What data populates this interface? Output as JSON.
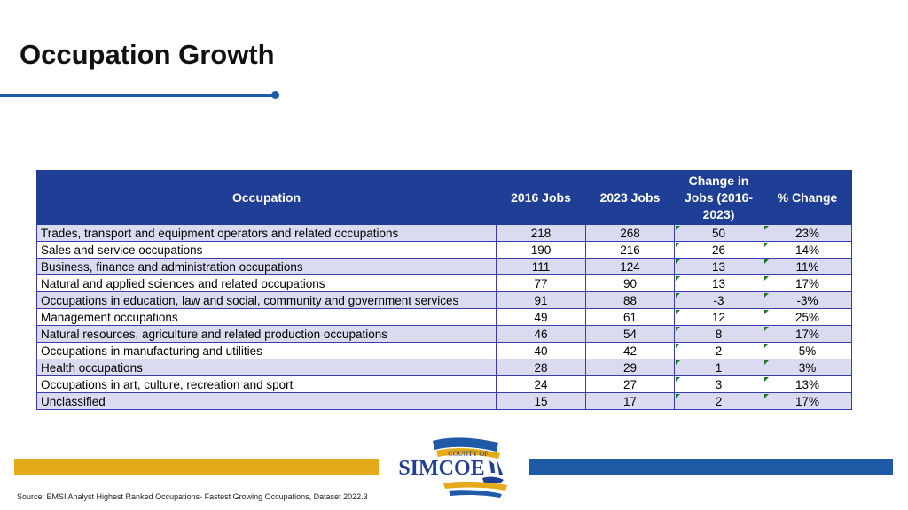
{
  "page": {
    "title": "Occupation Growth"
  },
  "table": {
    "headers": [
      "Occupation",
      "2016 Jobs",
      "2023 Jobs",
      "Change in Jobs (2016-2023)",
      "% Change"
    ],
    "rows": [
      [
        "Trades, transport and equipment operators and related occupations",
        "218",
        "268",
        "50",
        "23%"
      ],
      [
        "Sales and service occupations",
        "190",
        "216",
        "26",
        "14%"
      ],
      [
        "Business, finance and administration occupations",
        "111",
        "124",
        "13",
        "11%"
      ],
      [
        "Natural and applied sciences and related occupations",
        "77",
        "90",
        "13",
        "17%"
      ],
      [
        "Occupations in education, law and social, community and government services",
        "91",
        "88",
        "-3",
        "-3%"
      ],
      [
        "Management occupations",
        "49",
        "61",
        "12",
        "25%"
      ],
      [
        "Natural resources, agriculture and related production occupations",
        "46",
        "54",
        "8",
        "17%"
      ],
      [
        "Occupations in manufacturing and utilities",
        "40",
        "42",
        "2",
        "5%"
      ],
      [
        "Health occupations",
        "28",
        "29",
        "1",
        "3%"
      ],
      [
        "Occupations in art, culture, recreation and sport",
        "24",
        "27",
        "3",
        "13%"
      ],
      [
        "Unclassified",
        "15",
        "17",
        "2",
        "17%"
      ]
    ]
  },
  "logo": {
    "line1": "COUNTY OF",
    "line2": "SIMCOE"
  },
  "footer": {
    "source": "Source: EMSI Analyst Highest Ranked Occupations- Fastest Growing Occupations, Dataset 2022.3"
  },
  "colors": {
    "header_bg": "#1f3e96",
    "accent_blue": "#1f5aa6",
    "accent_gold": "#e5aa1a",
    "row_alt": "#dadaf0"
  }
}
